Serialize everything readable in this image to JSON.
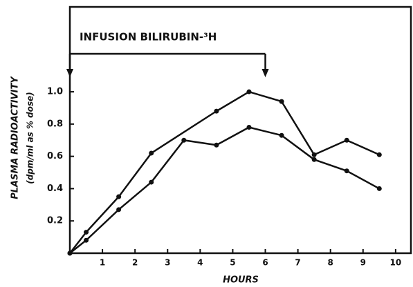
{
  "chart_data": {
    "type": "line",
    "annotation": "INFUSION BILIRUBIN-³H",
    "annotation_span": [
      0,
      6
    ],
    "y_label": [
      "PLASMA RADIOACTIVITY",
      "(dpm/ml as % dose)"
    ],
    "x_label": "HOURS",
    "series": [
      {
        "color": "#111111",
        "x": [
          0,
          0.5,
          1.5,
          2.5,
          4.5,
          5.5,
          6.5,
          7.5,
          8.5,
          9.5
        ],
        "values": [
          0,
          0.13,
          0.35,
          0.62,
          0.88,
          1.0,
          0.94,
          0.61,
          0.7,
          0.61
        ]
      },
      {
        "color": "#111111",
        "x": [
          0,
          0.5,
          1.5,
          2.5,
          3.5,
          4.5,
          5.5,
          6.5,
          7.5,
          8.5,
          9.5
        ],
        "values": [
          0,
          0.08,
          0.27,
          0.44,
          0.7,
          0.67,
          0.78,
          0.73,
          0.58,
          0.51,
          0.4
        ]
      }
    ],
    "xlim": [
      0,
      10.47
    ],
    "ylim": [
      0,
      1.526
    ],
    "xticks": [
      1,
      2,
      3,
      4,
      5,
      6,
      7,
      8,
      9,
      10
    ],
    "yticks": [
      0.2,
      0.4,
      0.6,
      0.8,
      {
        "value": 1,
        "label": "1.0"
      }
    ]
  }
}
